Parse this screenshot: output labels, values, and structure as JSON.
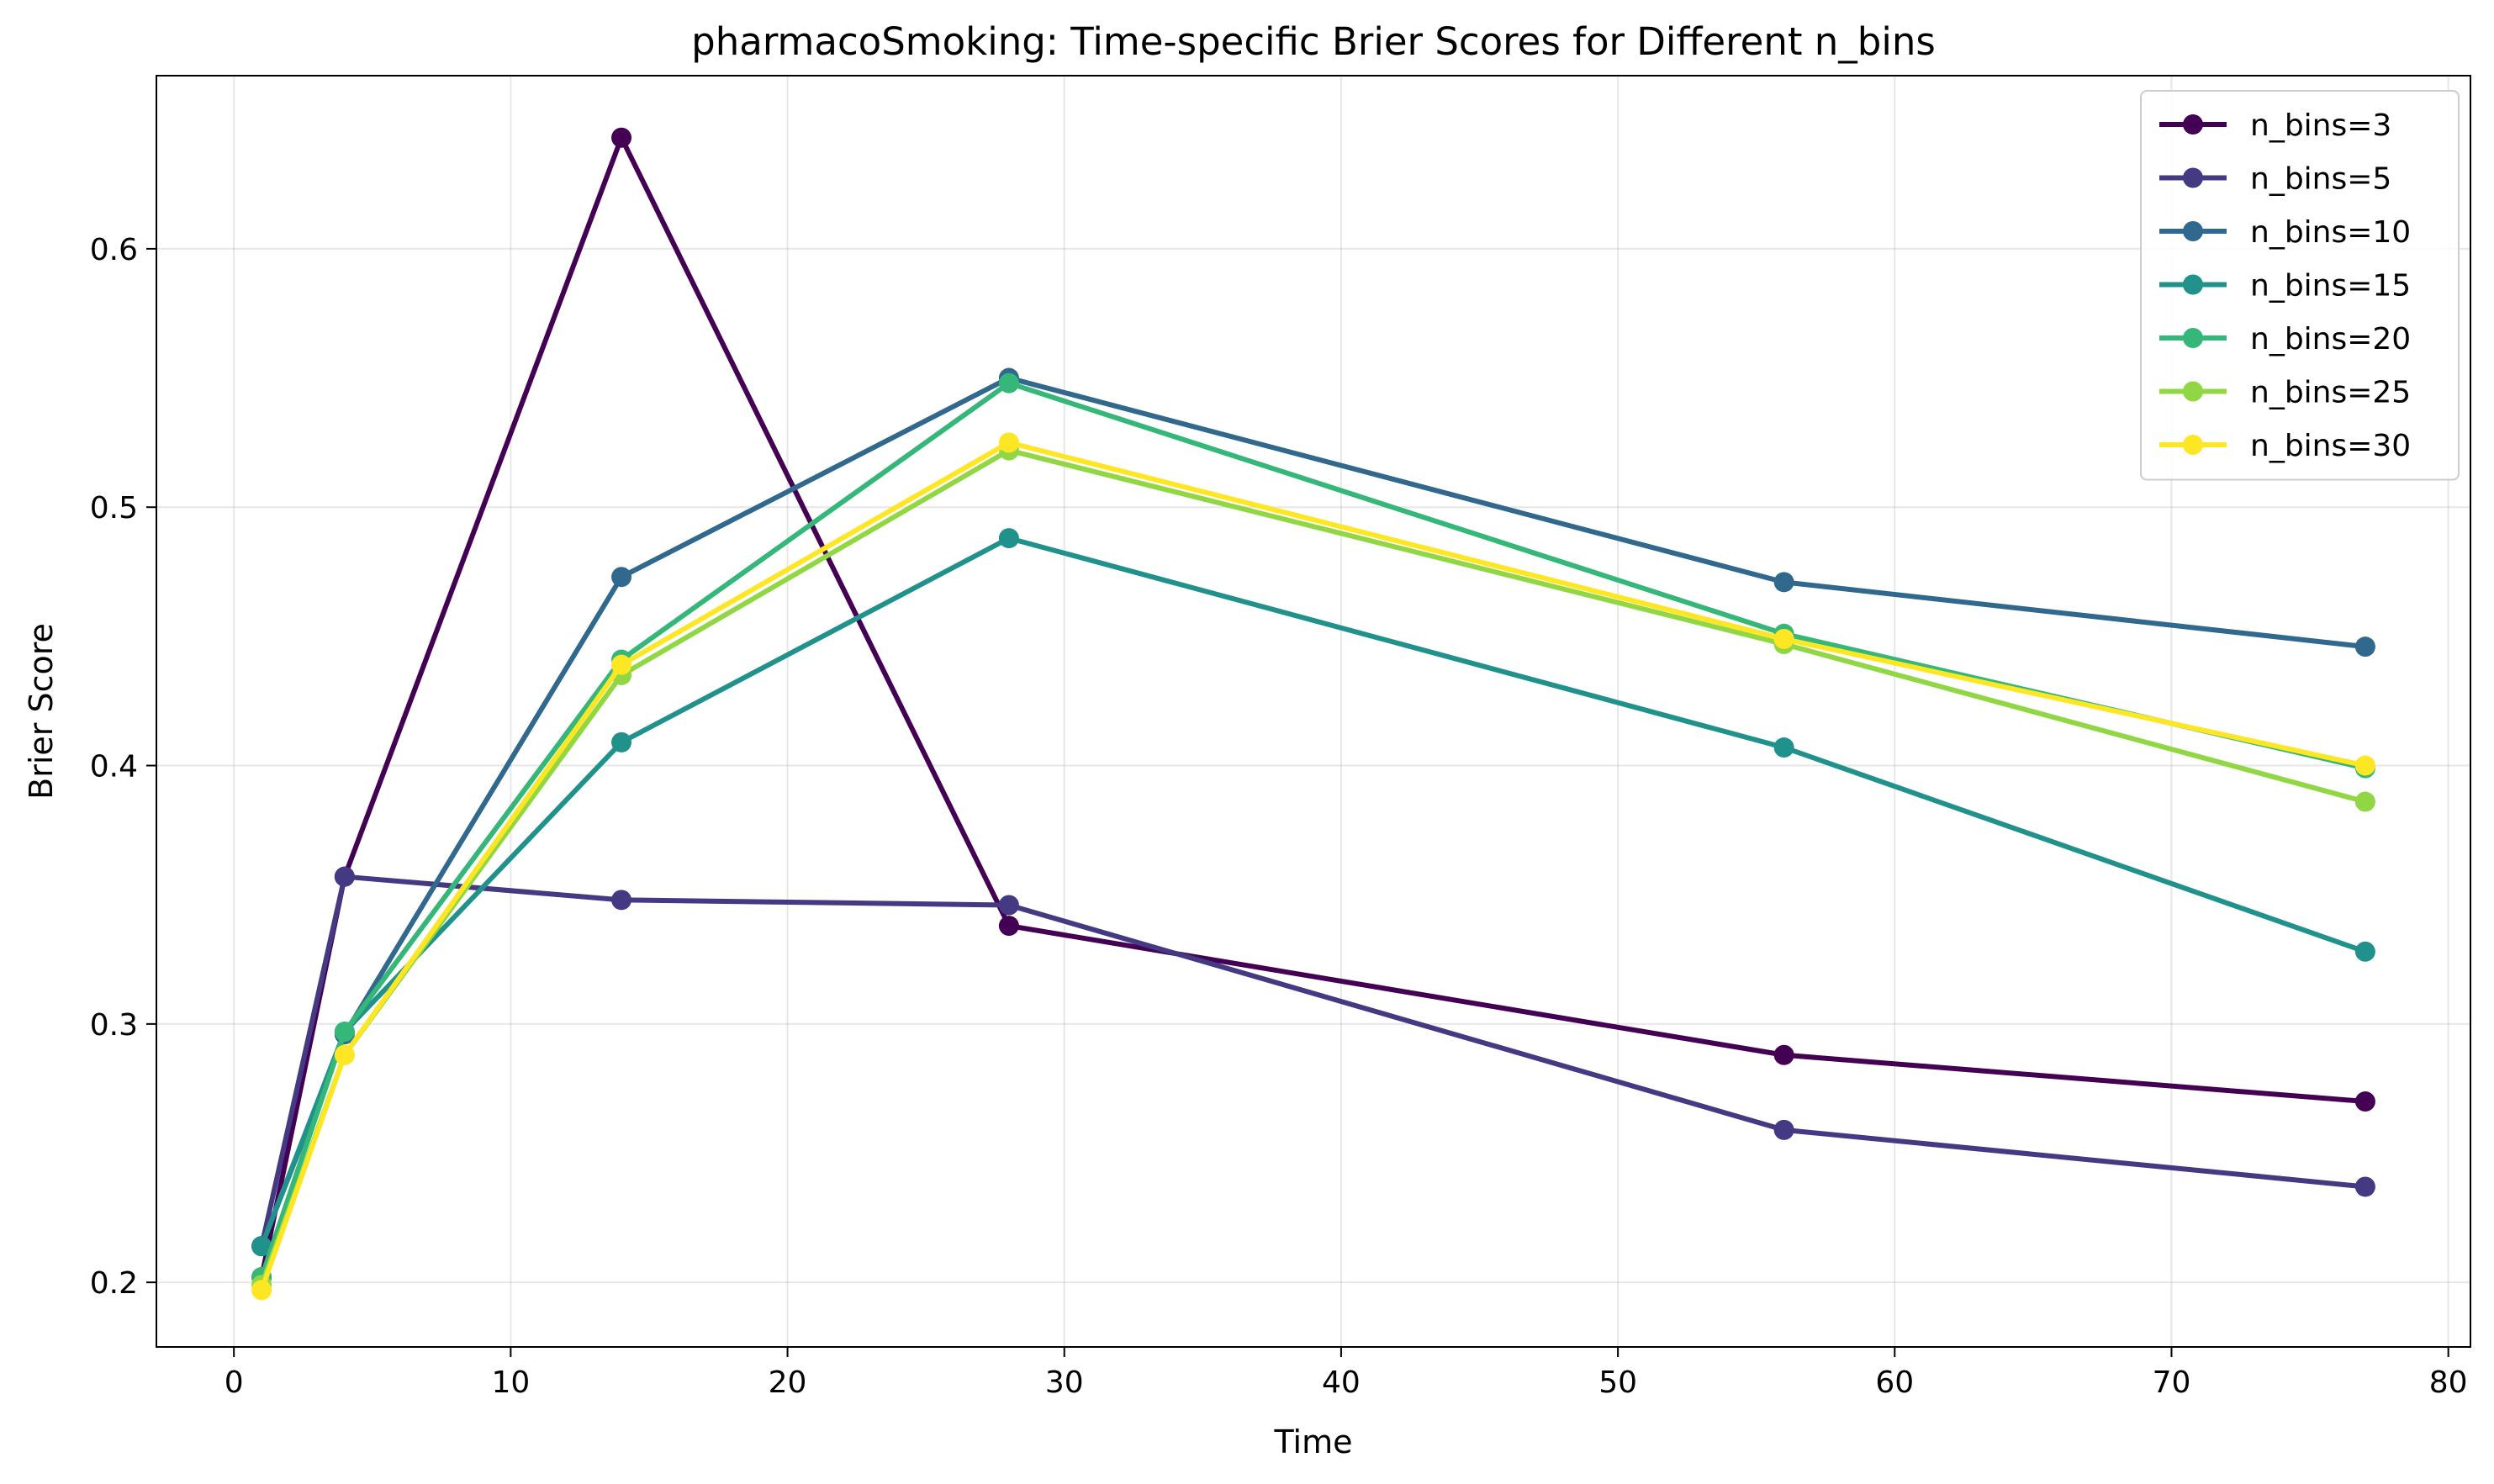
{
  "chart_data": {
    "type": "line",
    "title": "pharmacoSmoking: Time-specific Brier Scores for Different n_bins",
    "xlabel": "Time",
    "ylabel": "Brier Score",
    "x": [
      1,
      4,
      14,
      28,
      56,
      77
    ],
    "xlim": [
      -2.8,
      80.8
    ],
    "ylim": [
      0.175,
      0.667
    ],
    "xticks": [
      0,
      10,
      20,
      30,
      40,
      50,
      60,
      70,
      80
    ],
    "xtick_labels": [
      "0",
      "10",
      "20",
      "30",
      "40",
      "50",
      "60",
      "70",
      "80"
    ],
    "yticks": [
      0.2,
      0.3,
      0.4,
      0.5,
      0.6
    ],
    "ytick_labels": [
      "0.2",
      "0.3",
      "0.4",
      "0.5",
      "0.6"
    ],
    "grid": true,
    "legend_position": "top-right",
    "series": [
      {
        "name": "n_bins=3",
        "color": "#440154",
        "values": [
          0.202,
          0.357,
          0.643,
          0.338,
          0.288,
          0.27
        ]
      },
      {
        "name": "n_bins=5",
        "color": "#443983",
        "values": [
          0.214,
          0.357,
          0.348,
          0.346,
          0.259,
          0.237
        ]
      },
      {
        "name": "n_bins=10",
        "color": "#31688e",
        "values": [
          0.214,
          0.296,
          0.473,
          0.55,
          0.471,
          0.446
        ]
      },
      {
        "name": "n_bins=15",
        "color": "#21918c",
        "values": [
          0.214,
          0.297,
          0.409,
          0.488,
          0.407,
          0.328
        ]
      },
      {
        "name": "n_bins=20",
        "color": "#35b779",
        "values": [
          0.202,
          0.297,
          0.441,
          0.548,
          0.451,
          0.399
        ]
      },
      {
        "name": "n_bins=25",
        "color": "#90d743",
        "values": [
          0.199,
          0.288,
          0.435,
          0.522,
          0.447,
          0.386
        ]
      },
      {
        "name": "n_bins=30",
        "color": "#fde725",
        "values": [
          0.197,
          0.288,
          0.439,
          0.525,
          0.449,
          0.4
        ]
      }
    ]
  }
}
